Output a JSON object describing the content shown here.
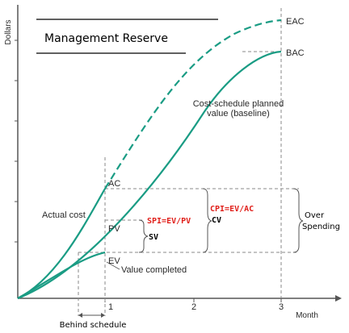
{
  "diagram": {
    "y_axis_label": "Dollars",
    "x_axis_label": "Month",
    "x_ticks": [
      "1",
      "2",
      "3"
    ],
    "curve_labels": {
      "eac": "EAC",
      "bac": "BAC",
      "planned_line1": "Cost-schedule planned",
      "planned_line2": "value (baseline)",
      "actual_cost": "Actual cost",
      "value_completed": "Value completed"
    },
    "point_labels": {
      "ac": "AC",
      "pv": "PV",
      "ev": "EV"
    },
    "management_reserve": "Management Reserve",
    "spi_formula": "SPI=EV/PV",
    "sv": "SV",
    "cpi_formula": "CPI=EV/AC",
    "cv": "CV",
    "over_spending_line1": "Over",
    "over_spending_line2": "Spending",
    "behind_schedule": "Behind schedule"
  },
  "colors": {
    "curve": "#1a9c84",
    "axis": "#555555",
    "dashed": "#8a8a8a",
    "formula_red": "#e0201b"
  }
}
